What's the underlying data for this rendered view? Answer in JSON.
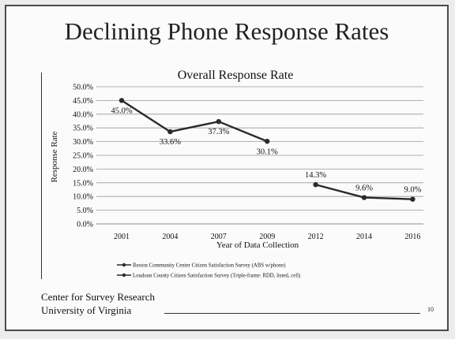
{
  "slide": {
    "title": "Declining Phone Response Rates",
    "org_line1": "Center for Survey Research",
    "org_line2": "University of Virginia",
    "page_number": "10"
  },
  "chart_data": {
    "type": "line",
    "title": "Overall Response Rate",
    "xlabel": "Year of Data Collection",
    "ylabel": "Response Rate",
    "categories": [
      "2001",
      "2004",
      "2007",
      "2009",
      "2012",
      "2014",
      "2016"
    ],
    "y_ticks": [
      "0.0%",
      "5.0%",
      "10.0%",
      "15.0%",
      "20.0%",
      "25.0%",
      "30.0%",
      "35.0%",
      "40.0%",
      "45.0%",
      "50.0%"
    ],
    "ylim": [
      0,
      50
    ],
    "grid": true,
    "legend_position": "bottom",
    "series": [
      {
        "name": "Reston Community Center Citizen Satisfaction Survey (ABS w/phone)",
        "values": [
          45.0,
          33.6,
          37.3,
          30.1,
          null,
          null,
          null
        ],
        "labels": [
          "45.0%",
          "33.6%",
          "37.3%",
          "30.1%",
          null,
          null,
          null
        ],
        "color": "#2a2a2a"
      },
      {
        "name": "Loudoun County Citizen Satisfaction Survey (Triple-frame: RDD, listed, cell)",
        "values": [
          null,
          null,
          null,
          null,
          14.3,
          9.6,
          9.0
        ],
        "labels": [
          null,
          null,
          null,
          null,
          "14.3%",
          "9.6%",
          "9.0%"
        ],
        "color": "#2a2a2a"
      }
    ]
  }
}
